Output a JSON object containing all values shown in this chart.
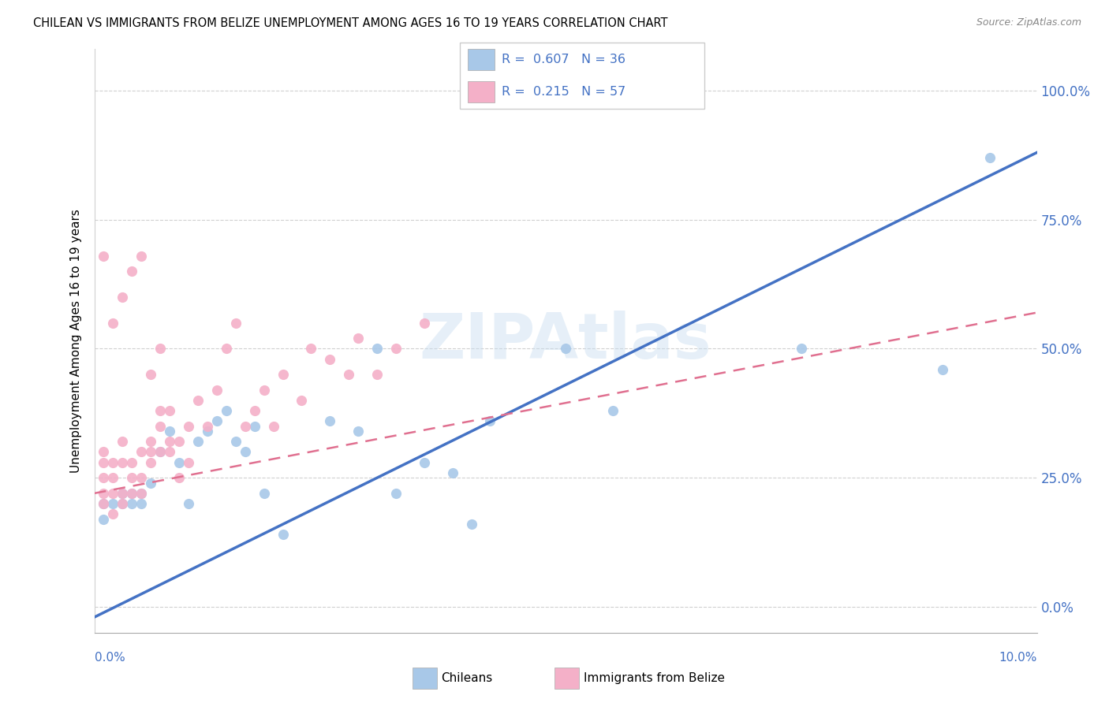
{
  "title": "CHILEAN VS IMMIGRANTS FROM BELIZE UNEMPLOYMENT AMONG AGES 16 TO 19 YEARS CORRELATION CHART",
  "source": "Source: ZipAtlas.com",
  "ylabel": "Unemployment Among Ages 16 to 19 years",
  "ytick_labels": [
    "0.0%",
    "25.0%",
    "50.0%",
    "75.0%",
    "100.0%"
  ],
  "ytick_values": [
    0.0,
    0.25,
    0.5,
    0.75,
    1.0
  ],
  "xlim": [
    0.0,
    0.1
  ],
  "ylim": [
    -0.05,
    1.08
  ],
  "watermark": "ZIPAtlas",
  "chilean_scatter_color": "#a8c8e8",
  "belize_scatter_color": "#f4b0c8",
  "chilean_line_color": "#4472c4",
  "belize_line_color": "#e07090",
  "chilean_line_intercept": -0.02,
  "chilean_line_slope": 9.0,
  "belize_line_intercept": 0.22,
  "belize_line_slope": 3.5,
  "chileans_x": [
    0.001,
    0.001,
    0.002,
    0.003,
    0.003,
    0.004,
    0.004,
    0.005,
    0.005,
    0.006,
    0.007,
    0.008,
    0.009,
    0.01,
    0.011,
    0.012,
    0.013,
    0.014,
    0.015,
    0.016,
    0.017,
    0.018,
    0.02,
    0.025,
    0.028,
    0.03,
    0.032,
    0.035,
    0.04,
    0.042,
    0.05,
    0.055,
    0.075,
    0.09,
    0.095,
    0.038
  ],
  "chileans_y": [
    0.17,
    0.2,
    0.2,
    0.2,
    0.22,
    0.2,
    0.22,
    0.2,
    0.22,
    0.24,
    0.3,
    0.34,
    0.28,
    0.2,
    0.32,
    0.34,
    0.36,
    0.38,
    0.32,
    0.3,
    0.35,
    0.22,
    0.14,
    0.36,
    0.34,
    0.5,
    0.22,
    0.28,
    0.16,
    0.36,
    0.5,
    0.38,
    0.5,
    0.46,
    0.87,
    0.26
  ],
  "belize_x": [
    0.001,
    0.001,
    0.001,
    0.001,
    0.001,
    0.002,
    0.002,
    0.002,
    0.002,
    0.003,
    0.003,
    0.003,
    0.003,
    0.004,
    0.004,
    0.004,
    0.005,
    0.005,
    0.005,
    0.006,
    0.006,
    0.006,
    0.007,
    0.007,
    0.007,
    0.008,
    0.008,
    0.008,
    0.009,
    0.009,
    0.01,
    0.01,
    0.011,
    0.012,
    0.013,
    0.014,
    0.015,
    0.016,
    0.017,
    0.018,
    0.019,
    0.02,
    0.022,
    0.023,
    0.025,
    0.027,
    0.028,
    0.03,
    0.032,
    0.035,
    0.002,
    0.003,
    0.004,
    0.005,
    0.006,
    0.007,
    0.001
  ],
  "belize_y": [
    0.2,
    0.22,
    0.25,
    0.28,
    0.3,
    0.18,
    0.22,
    0.25,
    0.28,
    0.2,
    0.22,
    0.28,
    0.32,
    0.22,
    0.25,
    0.28,
    0.22,
    0.25,
    0.3,
    0.28,
    0.3,
    0.32,
    0.3,
    0.35,
    0.38,
    0.3,
    0.32,
    0.38,
    0.25,
    0.32,
    0.28,
    0.35,
    0.4,
    0.35,
    0.42,
    0.5,
    0.55,
    0.35,
    0.38,
    0.42,
    0.35,
    0.45,
    0.4,
    0.5,
    0.48,
    0.45,
    0.52,
    0.45,
    0.5,
    0.55,
    0.55,
    0.6,
    0.65,
    0.68,
    0.45,
    0.5,
    0.68
  ]
}
